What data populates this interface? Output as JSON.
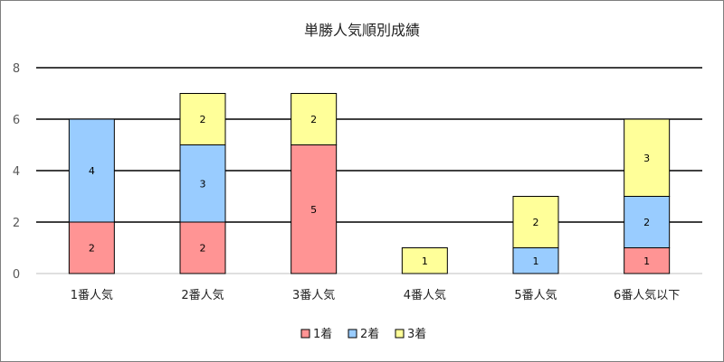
{
  "chart_data": {
    "type": "bar",
    "stacked": true,
    "title": "単勝人気順別成績",
    "xlabel": "",
    "ylabel": "",
    "ylim": [
      0,
      8
    ],
    "yticks": [
      0,
      2,
      4,
      6,
      8
    ],
    "grid": true,
    "legend_position": "bottom",
    "categories": [
      "1番人気",
      "2番人気",
      "3番人気",
      "4番人気",
      "5番人気",
      "6番人気以下"
    ],
    "series": [
      {
        "name": "1着",
        "color": "#ff9494",
        "values": [
          2,
          2,
          5,
          0,
          0,
          1
        ]
      },
      {
        "name": "2着",
        "color": "#99ccff",
        "values": [
          4,
          3,
          0,
          0,
          1,
          2
        ]
      },
      {
        "name": "3着",
        "color": "#ffff99",
        "values": [
          0,
          2,
          2,
          1,
          2,
          3
        ]
      }
    ]
  }
}
